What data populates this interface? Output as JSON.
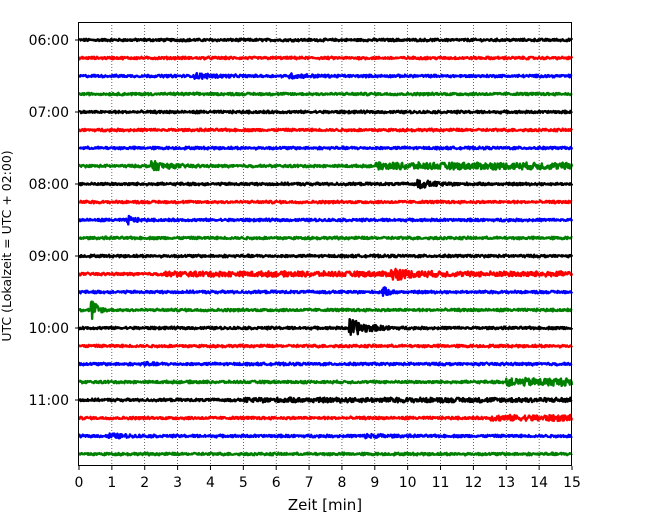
{
  "chart_data": {
    "type": "line",
    "title": "",
    "xlabel": "Zeit  [min]",
    "ylabel": "UTC (Lokalzeit = UTC + 02:00)",
    "xlim": [
      0,
      15
    ],
    "x_ticks": [
      "0",
      "1",
      "2",
      "3",
      "4",
      "5",
      "6",
      "7",
      "8",
      "9",
      "10",
      "11",
      "12",
      "13",
      "14",
      "15"
    ],
    "y_ticks": [
      "06:00",
      "07:00",
      "08:00",
      "09:00",
      "10:00",
      "11:00"
    ],
    "grid": "vertical dotted at each minute",
    "trace_colors": [
      "#000000",
      "#ff0000",
      "#0000ff",
      "#008000"
    ],
    "traces_start": "06:00",
    "trace_interval_minutes": 15,
    "trace_count": 24,
    "events": [
      {
        "trace": 2,
        "at_min": 3.6,
        "amplitude": 0.25,
        "kind": "burst"
      },
      {
        "trace": 2,
        "at_min": 6.5,
        "amplitude": 0.18,
        "kind": "burst"
      },
      {
        "trace": 7,
        "at_min": 2.3,
        "amplitude": 0.45,
        "kind": "burst"
      },
      {
        "trace": 7,
        "at_min": 9.0,
        "amplitude": 0.25,
        "kind": "long"
      },
      {
        "trace": 8,
        "at_min": 10.4,
        "amplitude": 0.35,
        "kind": "burst"
      },
      {
        "trace": 10,
        "at_min": 1.5,
        "amplitude": 0.45,
        "kind": "spike"
      },
      {
        "trace": 13,
        "at_min": 9.6,
        "amplitude": 0.5,
        "kind": "burst"
      },
      {
        "trace": 13,
        "at_min": 2.5,
        "amplitude": 0.15,
        "kind": "long"
      },
      {
        "trace": 14,
        "at_min": 9.25,
        "amplitude": 0.5,
        "kind": "spike"
      },
      {
        "trace": 15,
        "at_min": 0.4,
        "amplitude": 1.2,
        "kind": "spike"
      },
      {
        "trace": 16,
        "at_min": 8.3,
        "amplitude": 0.9,
        "kind": "burst"
      },
      {
        "trace": 18,
        "at_min": 2.0,
        "amplitude": 0.2,
        "kind": "spike"
      },
      {
        "trace": 19,
        "at_min": 13.0,
        "amplitude": 0.3,
        "kind": "step"
      },
      {
        "trace": 20,
        "at_min": 5.0,
        "amplitude": 0.12,
        "kind": "long"
      },
      {
        "trace": 21,
        "at_min": 12.5,
        "amplitude": 0.2,
        "kind": "step"
      },
      {
        "trace": 22,
        "at_min": 1.0,
        "amplitude": 0.2,
        "kind": "burst"
      },
      {
        "trace": 22,
        "at_min": 8.8,
        "amplitude": 0.2,
        "kind": "burst"
      }
    ]
  }
}
